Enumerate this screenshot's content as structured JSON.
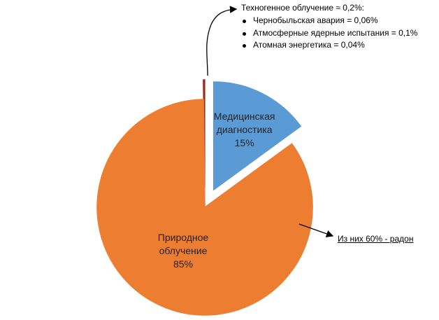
{
  "chart_data": {
    "type": "pie",
    "categories": [
      "Медицинская диагностика",
      "Природное облучение",
      null
    ],
    "values": [
      15,
      85,
      0.2
    ],
    "value_labels": [
      "15%",
      "85%",
      null
    ],
    "colors": [
      "#5b9bd5",
      "#ed7d31",
      "#9e2a1f"
    ],
    "explode": [
      true,
      false,
      true
    ],
    "annotations": {
      "technogenic": "Техногенное облучение ≈ 0,2%:",
      "technogenic_items": [
        "Чернобыльская авария = 0,06%",
        "Атмосферные ядерные испытания = 0,1%",
        "Атомная энергетика = 0,04%"
      ],
      "radon": "Из них 60% - радон"
    }
  }
}
